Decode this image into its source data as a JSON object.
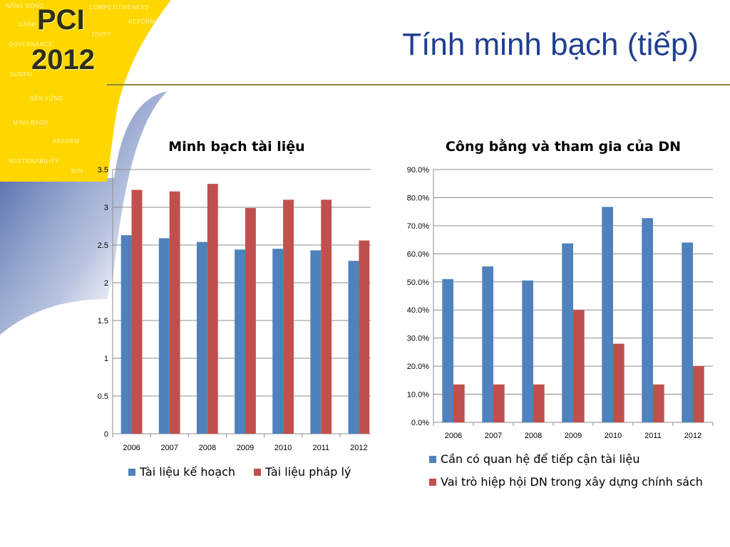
{
  "slide": {
    "title": "Tính minh bạch (tiếp)",
    "logo_line1": "PCI",
    "logo_line2": "2012",
    "logo_words": [
      "NĂNG ĐỘNG",
      "COMPETITIVENESS",
      "CẠNH",
      "REFORM",
      "GOVERNANCE",
      "TIVITY",
      "SUSTAI",
      "BỀN VỮNG",
      "MINH BẠCH",
      "REFORM",
      "SUSTAINABILITY",
      "MIN"
    ]
  },
  "colors": {
    "series1": "#4f81bd",
    "series2": "#c0504d",
    "title": "#1f3f8f",
    "logo_yellow": "#ffd700",
    "grid": "#8c8c8c"
  },
  "chart_data": [
    {
      "type": "bar",
      "title": "Minh bạch tài liệu",
      "categories": [
        "2006",
        "2007",
        "2008",
        "2009",
        "2010",
        "2011",
        "2012"
      ],
      "series": [
        {
          "name": "Tài liệu kế hoạch",
          "values": [
            2.63,
            2.59,
            2.54,
            2.44,
            2.45,
            2.43,
            2.29
          ]
        },
        {
          "name": "Tài liệu pháp lý",
          "values": [
            3.23,
            3.21,
            3.31,
            2.99,
            3.1,
            3.1,
            2.56
          ]
        }
      ],
      "ylim": [
        0,
        3.5
      ],
      "yticks": [
        "0",
        "0.5",
        "1",
        "1.5",
        "2",
        "2.5",
        "3",
        "3.5"
      ],
      "grid": true,
      "legend": "bottom"
    },
    {
      "type": "bar",
      "title": "Công bằng và tham gia của DN",
      "categories": [
        "2006",
        "2007",
        "2008",
        "2009",
        "2010",
        "2011",
        "2012"
      ],
      "series": [
        {
          "name": "Cần có quan hệ để tiếp cận tài liệu",
          "values": [
            0.51,
            0.555,
            0.505,
            0.637,
            0.767,
            0.727,
            0.64
          ]
        },
        {
          "name": "Vai trò hiệp hội DN trong xây dựng chính sách",
          "values": [
            0.135,
            0.135,
            0.135,
            0.4,
            0.28,
            0.135,
            0.2
          ]
        }
      ],
      "ylim": [
        0,
        0.9
      ],
      "yticks": [
        "0.0%",
        "10.0%",
        "20.0%",
        "30.0%",
        "40.0%",
        "50.0%",
        "60.0%",
        "70.0%",
        "80.0%",
        "90.0%"
      ],
      "grid": true,
      "legend": "bottom"
    }
  ]
}
